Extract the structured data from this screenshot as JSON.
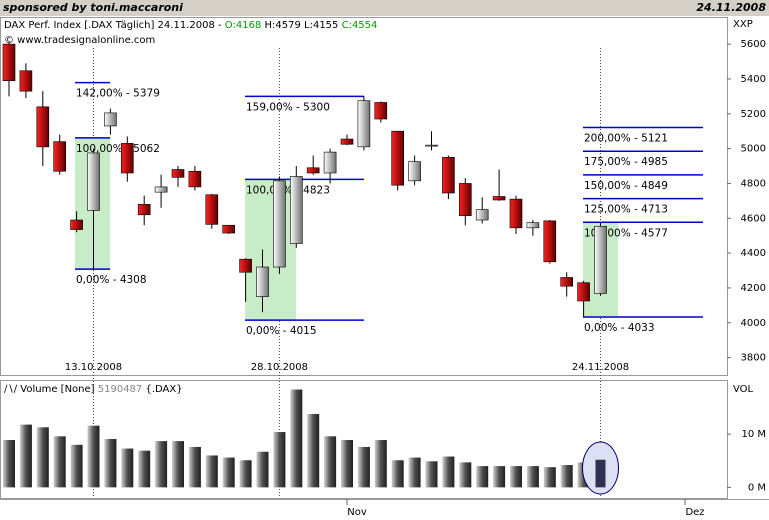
{
  "header": {
    "sponsor": "sponsored by toni.maccaroni",
    "date": "24.11.2008"
  },
  "chart_data": {
    "type": "candlestick",
    "title": "DAX Perf. Index [.DAX  Täglich] 24.11.2008 -",
    "title_open": "O:4168",
    "title_high_low": "H:4579 L:4155",
    "title_close": "C:4554",
    "subtitle": "© www.tradesignalonline.com",
    "y_axis_label": "XXP",
    "categories": [
      null,
      null,
      null,
      null,
      null,
      "13.10.2008",
      null,
      null,
      null,
      null,
      null,
      null,
      null,
      null,
      null,
      null,
      "28.10.2008",
      null,
      null,
      null,
      null,
      null,
      null,
      null,
      null,
      null,
      null,
      null,
      null,
      null,
      null,
      null,
      null,
      null,
      null,
      "24.11.2008"
    ],
    "month_labels": [
      "Nov",
      "Dez"
    ],
    "open": [
      5600,
      5447,
      5240,
      5040,
      4590,
      4645,
      5130,
      5030,
      4680,
      4750,
      4880,
      4870,
      4735,
      4560,
      4365,
      4150,
      4320,
      4455,
      4890,
      4860,
      5055,
      5010,
      5265,
      5100,
      4815,
      5015,
      4950,
      4800,
      4590,
      4725,
      4710,
      4545,
      4585,
      4260,
      4230,
      4168
    ],
    "high": [
      5610,
      5490,
      5330,
      5080,
      4640,
      5000,
      5230,
      5070,
      4730,
      4850,
      4900,
      4900,
      4740,
      4560,
      4370,
      4420,
      4840,
      4900,
      4960,
      5000,
      5080,
      5300,
      5270,
      5100,
      4960,
      5100,
      4960,
      4830,
      4720,
      4880,
      4730,
      4590,
      4590,
      4290,
      4240,
      4579
    ],
    "low": [
      5300,
      5290,
      4900,
      4850,
      4520,
      4300,
      5080,
      4810,
      4560,
      4660,
      4780,
      4760,
      4540,
      4510,
      4120,
      4060,
      4280,
      4430,
      4850,
      4800,
      5020,
      4990,
      5150,
      4760,
      4790,
      4990,
      4710,
      4560,
      4570,
      4700,
      4510,
      4500,
      4340,
      4150,
      4035,
      4155
    ],
    "close": [
      5390,
      5330,
      5010,
      4870,
      4535,
      4975,
      5205,
      4860,
      4620,
      4780,
      4835,
      4780,
      4565,
      4515,
      4290,
      4320,
      4815,
      4840,
      4860,
      4980,
      5025,
      5275,
      5170,
      4790,
      4925,
      5020,
      4745,
      4615,
      4650,
      4705,
      4545,
      4575,
      4350,
      4210,
      4125,
      4554
    ],
    "up_color": "#e8e8e8",
    "down_color": "#c00000",
    "ylim": [
      3700,
      5750
    ],
    "yticks": [
      3800,
      4000,
      4200,
      4400,
      4600,
      4800,
      5000,
      5200,
      5400,
      5600
    ],
    "grid": false,
    "fibs": [
      {
        "color": "#0000cc",
        "zone_color": "#c8ecc8",
        "levels": [
          {
            "value": 5379,
            "label": "142,00% - 5379"
          },
          {
            "value": 5062,
            "label": "100,00% - 5062"
          },
          {
            "value": 4308,
            "label": "0,00% - 4308"
          }
        ]
      },
      {
        "color": "#0000cc",
        "zone_color": "#c8ecc8",
        "levels": [
          {
            "value": 5300,
            "label": "159,00% - 5300"
          },
          {
            "value": 4823,
            "label": "100,00% - 4823"
          },
          {
            "value": 4015,
            "label": "0,00% - 4015"
          }
        ]
      },
      {
        "color": "#0000cc",
        "zone_color": "#c8ecc8",
        "levels": [
          {
            "value": 5121,
            "label": "200,00% - 5121"
          },
          {
            "value": 4985,
            "label": "175,00% - 4985"
          },
          {
            "value": 4849,
            "label": "150,00% - 4849"
          },
          {
            "value": 4713,
            "label": "125,00% - 4713"
          },
          {
            "value": 4577,
            "label": "100,00% - 4577"
          },
          {
            "value": 4033,
            "label": "0,00% - 4033"
          }
        ]
      }
    ],
    "volume": {
      "title": "Volume [None]",
      "last": "5190487",
      "symbol": "{.DAX}",
      "axis_label": "VOL",
      "color": "#404040",
      "values": [
        8.9,
        11.8,
        11.3,
        9.6,
        8.0,
        11.6,
        9.1,
        7.3,
        6.9,
        8.7,
        8.7,
        7.6,
        6.0,
        5.6,
        5.1,
        6.7,
        10.4,
        18.4,
        13.8,
        9.6,
        8.9,
        7.6,
        8.9,
        5.1,
        5.6,
        4.9,
        5.8,
        4.7,
        4.0,
        4.0,
        4.0,
        4.0,
        3.8,
        4.2,
        4.7,
        5.19
      ],
      "ylim": [
        -2,
        20
      ],
      "yticks": [
        {
          "value": 10,
          "label": "10 M"
        },
        {
          "value": 0,
          "label": "0 M"
        }
      ]
    }
  }
}
